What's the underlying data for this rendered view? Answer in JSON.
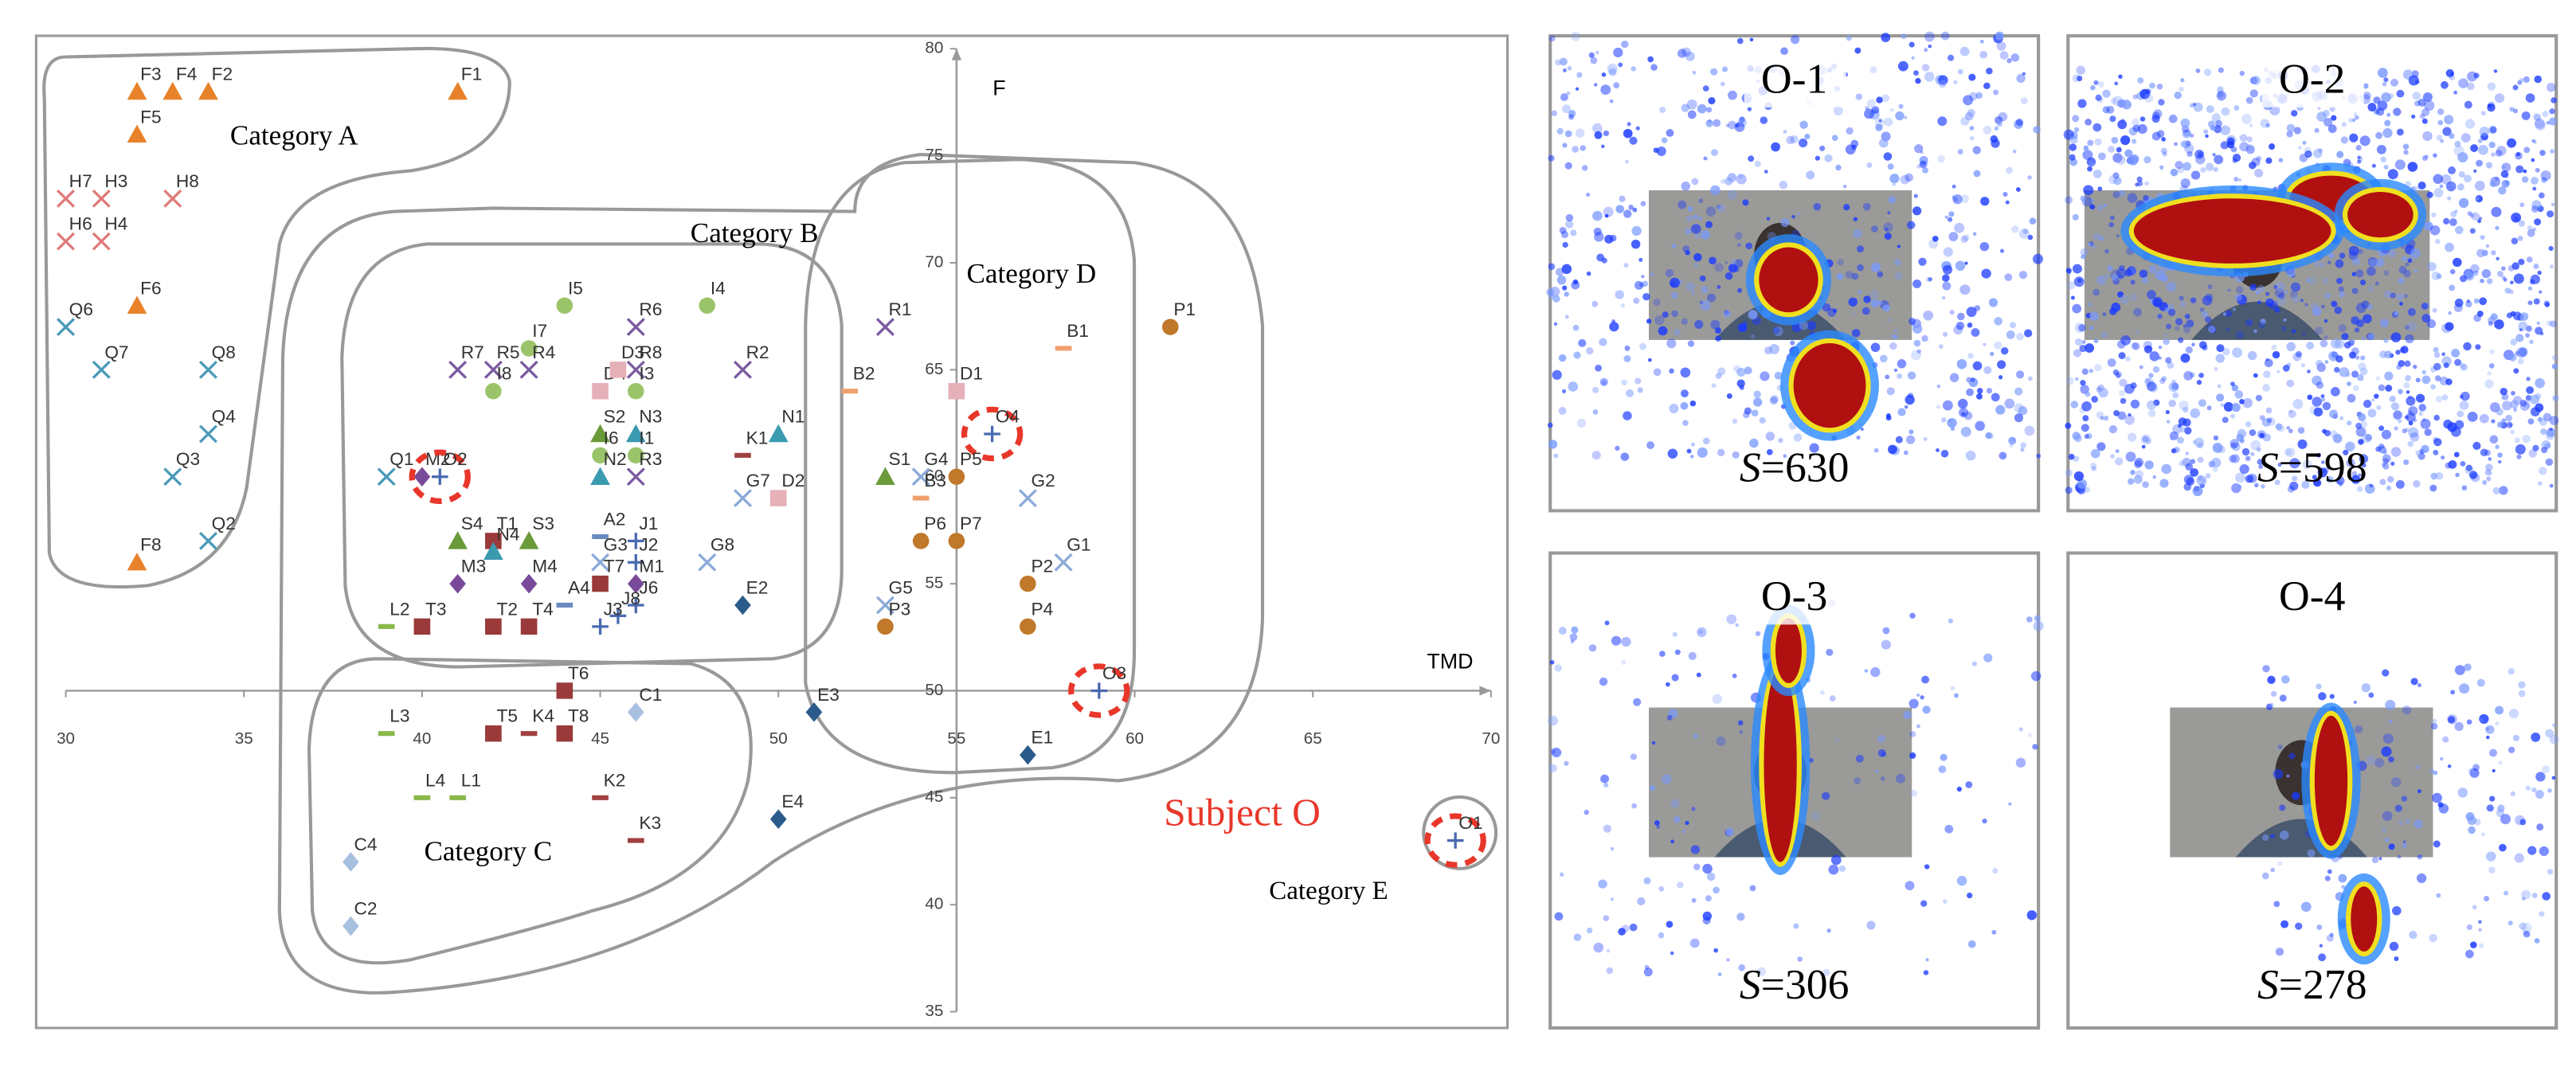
{
  "chart_data": {
    "type": "scatter",
    "x_label": "TMD",
    "y_label": "F",
    "xlim": [
      30,
      70
    ],
    "xticks": [
      30,
      35,
      40,
      45,
      50,
      55,
      60,
      65,
      70
    ],
    "ylim": [
      35,
      80
    ],
    "yticks": [
      35,
      40,
      45,
      50,
      55,
      60,
      65,
      70,
      75,
      80
    ],
    "x_cross": 55,
    "y_cross": 50,
    "categories_text": [
      "Category A",
      "Category B",
      "Category C",
      "Category D",
      "Category E"
    ],
    "subject": "Subject O",
    "markers": {
      "F": {
        "color": "#e8822a",
        "shape": "triangle"
      },
      "H": {
        "color": "#e07a7a",
        "shape": "x"
      },
      "Q": {
        "color": "#4a9ab8",
        "shape": "x"
      },
      "I": {
        "color": "#9bc46a",
        "shape": "circle"
      },
      "R": {
        "color": "#7a5aa0",
        "shape": "x"
      },
      "D": {
        "color": "#e6b0b8",
        "shape": "square"
      },
      "S": {
        "color": "#6a9a3a",
        "shape": "triangle"
      },
      "N": {
        "color": "#3a9ab0",
        "shape": "triangle"
      },
      "M": {
        "color": "#7a4a9a",
        "shape": "diamond"
      },
      "T": {
        "color": "#9a3a3a",
        "shape": "square"
      },
      "A": {
        "color": "#6a8ac0",
        "shape": "dash"
      },
      "G": {
        "color": "#8aaad8",
        "shape": "x"
      },
      "J": {
        "color": "#4a6ab0",
        "shape": "plus"
      },
      "E": {
        "color": "#2a5a8a",
        "shape": "diamond"
      },
      "L": {
        "color": "#8ab84a",
        "shape": "dash"
      },
      "K": {
        "color": "#a04040",
        "shape": "dash"
      },
      "C": {
        "color": "#a8c0e0",
        "shape": "diamond"
      },
      "B": {
        "color": "#f0a070",
        "shape": "dash"
      },
      "P": {
        "color": "#c0782a",
        "shape": "circle"
      },
      "O": {
        "color": "#4a6ab0",
        "shape": "plus",
        "highlight": true
      }
    },
    "points": [
      {
        "label": "F3",
        "x": 32,
        "y": 78
      },
      {
        "label": "F4",
        "x": 33,
        "y": 78
      },
      {
        "label": "F2",
        "x": 34,
        "y": 78
      },
      {
        "label": "F1",
        "x": 41,
        "y": 78
      },
      {
        "label": "F5",
        "x": 32,
        "y": 76
      },
      {
        "label": "F6",
        "x": 32,
        "y": 68
      },
      {
        "label": "F8",
        "x": 32,
        "y": 56
      },
      {
        "label": "H7",
        "x": 30,
        "y": 73
      },
      {
        "label": "H3",
        "x": 31,
        "y": 73
      },
      {
        "label": "H8",
        "x": 33,
        "y": 73
      },
      {
        "label": "H6",
        "x": 30,
        "y": 71
      },
      {
        "label": "H4",
        "x": 31,
        "y": 71
      },
      {
        "label": "Q6",
        "x": 30,
        "y": 67
      },
      {
        "label": "Q7",
        "x": 31,
        "y": 65
      },
      {
        "label": "Q8",
        "x": 34,
        "y": 65
      },
      {
        "label": "Q4",
        "x": 34,
        "y": 62
      },
      {
        "label": "Q3",
        "x": 33,
        "y": 60
      },
      {
        "label": "Q2",
        "x": 34,
        "y": 57
      },
      {
        "label": "Q1",
        "x": 39,
        "y": 60
      },
      {
        "label": "I5",
        "x": 44,
        "y": 68
      },
      {
        "label": "I4",
        "x": 48,
        "y": 68
      },
      {
        "label": "R6",
        "x": 46,
        "y": 67
      },
      {
        "label": "R7",
        "x": 41,
        "y": 65
      },
      {
        "label": "R5",
        "x": 42,
        "y": 65
      },
      {
        "label": "I7",
        "x": 43,
        "y": 66
      },
      {
        "label": "R4",
        "x": 43,
        "y": 65
      },
      {
        "label": "R8",
        "x": 46,
        "y": 65
      },
      {
        "label": "I8",
        "x": 42,
        "y": 64
      },
      {
        "label": "D4",
        "x": 45,
        "y": 64
      },
      {
        "label": "D3",
        "x": 45.5,
        "y": 65
      },
      {
        "label": "I3",
        "x": 46,
        "y": 64
      },
      {
        "label": "R2",
        "x": 49,
        "y": 65
      },
      {
        "label": "S2",
        "x": 45,
        "y": 62
      },
      {
        "label": "N3",
        "x": 46,
        "y": 62
      },
      {
        "label": "I6",
        "x": 45,
        "y": 61
      },
      {
        "label": "I1",
        "x": 46,
        "y": 61
      },
      {
        "label": "N2",
        "x": 45,
        "y": 60
      },
      {
        "label": "R3",
        "x": 46,
        "y": 60
      },
      {
        "label": "M2",
        "x": 40,
        "y": 60
      },
      {
        "label": "O2",
        "x": 40.5,
        "y": 60
      },
      {
        "label": "S4",
        "x": 41,
        "y": 57
      },
      {
        "label": "T1",
        "x": 42,
        "y": 57
      },
      {
        "label": "S3",
        "x": 43,
        "y": 57
      },
      {
        "label": "N4",
        "x": 42,
        "y": 56.5
      },
      {
        "label": "A2",
        "x": 45,
        "y": 57.2
      },
      {
        "label": "J1",
        "x": 46,
        "y": 57
      },
      {
        "label": "G3",
        "x": 45,
        "y": 56
      },
      {
        "label": "J2",
        "x": 46,
        "y": 56
      },
      {
        "label": "G8",
        "x": 48,
        "y": 56
      },
      {
        "label": "M3",
        "x": 41,
        "y": 55
      },
      {
        "label": "M4",
        "x": 43,
        "y": 55
      },
      {
        "label": "T7",
        "x": 45,
        "y": 55
      },
      {
        "label": "M1",
        "x": 46,
        "y": 55
      },
      {
        "label": "A4",
        "x": 44,
        "y": 54
      },
      {
        "label": "J6",
        "x": 46,
        "y": 54
      },
      {
        "label": "E2",
        "x": 49,
        "y": 54
      },
      {
        "label": "J8",
        "x": 45.5,
        "y": 53.5
      },
      {
        "label": "J3",
        "x": 45,
        "y": 53
      },
      {
        "label": "L2",
        "x": 39,
        "y": 53
      },
      {
        "label": "T3",
        "x": 40,
        "y": 53
      },
      {
        "label": "T2",
        "x": 42,
        "y": 53
      },
      {
        "label": "T4",
        "x": 43,
        "y": 53
      },
      {
        "label": "T6",
        "x": 44,
        "y": 50
      },
      {
        "label": "C1",
        "x": 46,
        "y": 49
      },
      {
        "label": "L3",
        "x": 39,
        "y": 48
      },
      {
        "label": "T5",
        "x": 42,
        "y": 48
      },
      {
        "label": "K4",
        "x": 43,
        "y": 48
      },
      {
        "label": "T8",
        "x": 44,
        "y": 48
      },
      {
        "label": "L4",
        "x": 40,
        "y": 45
      },
      {
        "label": "L1",
        "x": 41,
        "y": 45
      },
      {
        "label": "K2",
        "x": 45,
        "y": 45
      },
      {
        "label": "K3",
        "x": 46,
        "y": 43
      },
      {
        "label": "C4",
        "x": 38,
        "y": 42
      },
      {
        "label": "C2",
        "x": 38,
        "y": 39
      },
      {
        "label": "E4",
        "x": 50,
        "y": 44
      },
      {
        "label": "E3",
        "x": 51,
        "y": 49
      },
      {
        "label": "R1",
        "x": 53,
        "y": 67
      },
      {
        "label": "B2",
        "x": 52,
        "y": 64
      },
      {
        "label": "D1",
        "x": 55,
        "y": 64
      },
      {
        "label": "B1",
        "x": 58,
        "y": 66
      },
      {
        "label": "P1",
        "x": 61,
        "y": 67
      },
      {
        "label": "N1",
        "x": 50,
        "y": 62
      },
      {
        "label": "K1",
        "x": 49,
        "y": 61
      },
      {
        "label": "O4",
        "x": 56,
        "y": 62
      },
      {
        "label": "S1",
        "x": 53,
        "y": 60
      },
      {
        "label": "G4",
        "x": 54,
        "y": 60
      },
      {
        "label": "P5",
        "x": 55,
        "y": 60
      },
      {
        "label": "G7",
        "x": 49,
        "y": 59
      },
      {
        "label": "D2",
        "x": 50,
        "y": 59
      },
      {
        "label": "B3",
        "x": 54,
        "y": 59
      },
      {
        "label": "G2",
        "x": 57,
        "y": 59
      },
      {
        "label": "P6",
        "x": 54,
        "y": 57
      },
      {
        "label": "P7",
        "x": 55,
        "y": 57
      },
      {
        "label": "G1",
        "x": 58,
        "y": 56
      },
      {
        "label": "P2",
        "x": 57,
        "y": 55
      },
      {
        "label": "G5",
        "x": 53,
        "y": 54
      },
      {
        "label": "P4",
        "x": 57,
        "y": 53
      },
      {
        "label": "P3",
        "x": 53,
        "y": 53
      },
      {
        "label": "O3",
        "x": 59,
        "y": 50
      },
      {
        "label": "E1",
        "x": 57,
        "y": 47
      },
      {
        "label": "O1",
        "x": 69,
        "y": 43
      }
    ]
  },
  "panels": [
    {
      "title": "O-1",
      "score": 630
    },
    {
      "title": "O-2",
      "score": 598
    },
    {
      "title": "O-3",
      "score": 306
    },
    {
      "title": "O-4",
      "score": 278
    }
  ],
  "score_symbol": "S",
  "score_sign": "="
}
